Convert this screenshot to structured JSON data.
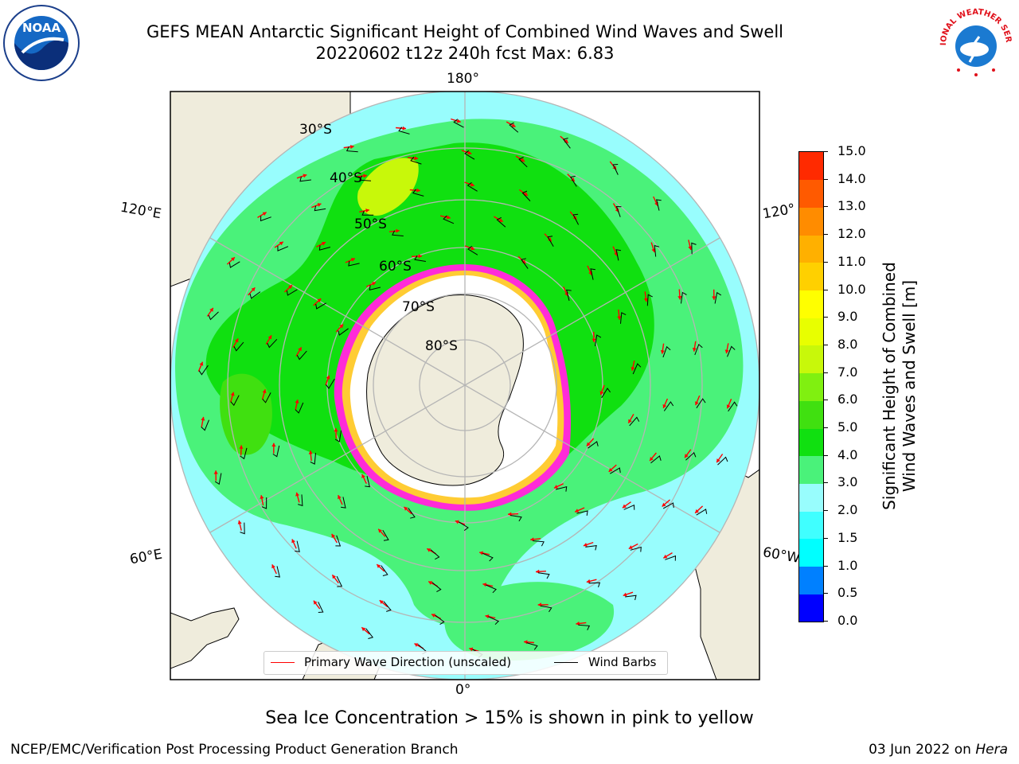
{
  "header": {
    "title_line1": "GEFS MEAN Antarctic Significant Height of Combined Wind Waves and Swell",
    "title_line2": "20220602 t12z 240h fcst   Max: 6.83"
  },
  "logos": {
    "left": {
      "name": "noaa-logo",
      "text": "NOAA"
    },
    "right": {
      "name": "nws-logo",
      "text": "NATIONAL WEATHER SERVICE"
    }
  },
  "map": {
    "projection": "south polar stereographic",
    "longitude_labels": {
      "top": "180°",
      "bottom": "0°",
      "upper_left": "120°E",
      "lower_left": "60°E",
      "upper_right": "120°",
      "lower_right": "60°W"
    },
    "latitude_labels": [
      "30°S",
      "40°S",
      "50°S",
      "60°S",
      "70°S",
      "80°S"
    ],
    "colors": {
      "land": "#efecdc",
      "ice": "#ffffff",
      "ocean_low": "#98fdfd",
      "ocean_mid": "#4af27a",
      "ocean_high": "#10e010",
      "ocean_peak": "#c8f80a",
      "ice_edge": "#ff2bd8",
      "wave_arrow": "#ff0000",
      "wind_barb": "#000000",
      "grid": "#b5b5b5"
    }
  },
  "legend": {
    "primary_wave": "Primary Wave Direction (unscaled)",
    "wind_barbs": "Wind Barbs"
  },
  "colorbar": {
    "label_line1": "Significant Height of Combined",
    "label_line2": "Wind Waves and Swell [m]",
    "ticks": [
      "0.0",
      "0.5",
      "1.0",
      "1.5",
      "2.0",
      "3.0",
      "4.0",
      "5.0",
      "6.0",
      "7.0",
      "8.0",
      "9.0",
      "10.0",
      "11.0",
      "12.0",
      "13.0",
      "14.0",
      "15.0"
    ],
    "colors": [
      "#0000ff",
      "#0080ff",
      "#00ffff",
      "#40ffff",
      "#98fdfd",
      "#4af27a",
      "#10e010",
      "#40e010",
      "#80f010",
      "#c8f80a",
      "#e8ff00",
      "#ffff00",
      "#ffd000",
      "#ffb000",
      "#ff8c00",
      "#ff5a00",
      "#ff2a00"
    ]
  },
  "note": "Sea Ice Concentration > 15% is shown in pink to yellow",
  "footer": {
    "left": "NCEP/EMC/Verification Post Processing Product Generation Branch",
    "right_date": "03 Jun 2022 on ",
    "right_host": "Hera"
  }
}
